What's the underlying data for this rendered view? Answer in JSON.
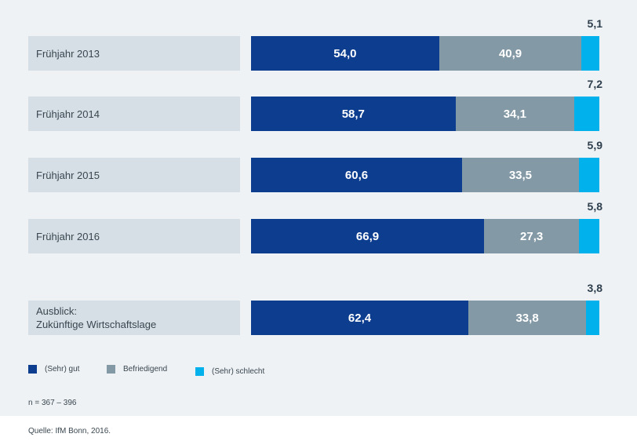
{
  "chart_data": {
    "type": "bar",
    "orientation": "horizontal",
    "stacked": true,
    "normalized": true,
    "categories": [
      "Frühjahr 2013",
      "Frühjahr 2014",
      "Frühjahr 2015",
      "Frühjahr 2016",
      "Ausblick:\nZukünftige Wirtschaftslage"
    ],
    "series": [
      {
        "name": "(Sehr) gut",
        "color": "#0d3d8f",
        "values": [
          54.0,
          58.7,
          60.6,
          66.9,
          62.4
        ],
        "labels": [
          "54,0",
          "58,7",
          "60,6",
          "66,9",
          "62,4"
        ]
      },
      {
        "name": "Befriedigend",
        "color": "#8399a6",
        "values": [
          40.9,
          34.1,
          33.5,
          27.3,
          33.8
        ],
        "labels": [
          "40,9",
          "34,1",
          "33,5",
          "27,3",
          "33,8"
        ]
      },
      {
        "name": "(Sehr) schlecht",
        "color": "#00b1eb",
        "values": [
          5.1,
          7.2,
          5.9,
          5.8,
          3.8
        ],
        "labels": [
          "5,1",
          "7,2",
          "5,9",
          "5,8",
          "3,8"
        ]
      }
    ],
    "legend_position": "bottom-left",
    "grid": false
  },
  "notes": {
    "sample_size": "n = 367 – 396",
    "source": "Quelle: IfM Bonn, 2016."
  }
}
